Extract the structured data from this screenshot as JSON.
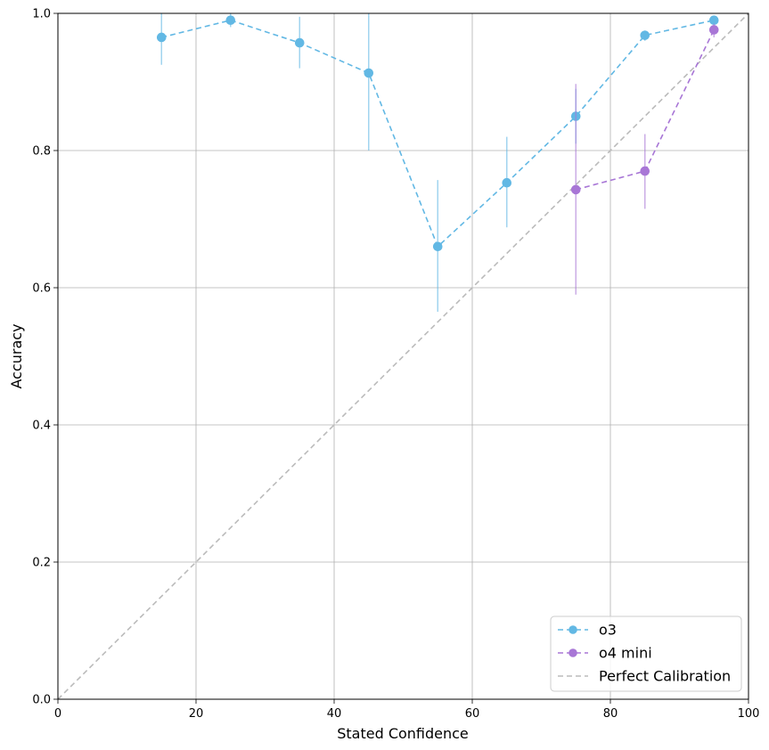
{
  "chart_data": {
    "type": "line",
    "xlabel": "Stated Confidence",
    "ylabel": "Accuracy",
    "xlim": [
      0,
      100
    ],
    "ylim": [
      0,
      1
    ],
    "xticks": [
      0,
      20,
      40,
      60,
      80,
      100
    ],
    "xtick_labels": [
      "0",
      "20",
      "40",
      "60",
      "80",
      "100"
    ],
    "yticks": [
      0.0,
      0.2,
      0.4,
      0.6,
      0.8,
      1.0
    ],
    "ytick_labels": [
      "0.0",
      "0.2",
      "0.4",
      "0.6",
      "0.8",
      "1.0"
    ],
    "grid": true,
    "legend_position": "lower-right",
    "series": [
      {
        "name": "o3",
        "color": "#62b8e4",
        "line_style": "dashed",
        "marker": "circle",
        "x": [
          15,
          25,
          35,
          45,
          55,
          65,
          75,
          85,
          95
        ],
        "y": [
          0.965,
          0.99,
          0.957,
          0.913,
          0.66,
          0.753,
          0.85,
          0.968,
          0.99
        ],
        "err_low": [
          0.925,
          0.98,
          0.92,
          0.8,
          0.565,
          0.688,
          0.81,
          0.96,
          0.985
        ],
        "err_high": [
          1.0,
          1.0,
          0.995,
          1.0,
          0.757,
          0.82,
          0.89,
          0.975,
          0.995
        ]
      },
      {
        "name": "o4 mini",
        "color": "#a876d6",
        "line_style": "dashed",
        "marker": "circle",
        "x": [
          75,
          85,
          95
        ],
        "y": [
          0.743,
          0.77,
          0.976
        ],
        "err_low": [
          0.59,
          0.715,
          0.965
        ],
        "err_high": [
          0.897,
          0.824,
          0.985
        ]
      },
      {
        "name": "Perfect Calibration",
        "color": "#bbbbbb",
        "line_style": "dashed",
        "marker": "none",
        "x": [
          0,
          100
        ],
        "y": [
          0,
          1
        ]
      }
    ]
  }
}
